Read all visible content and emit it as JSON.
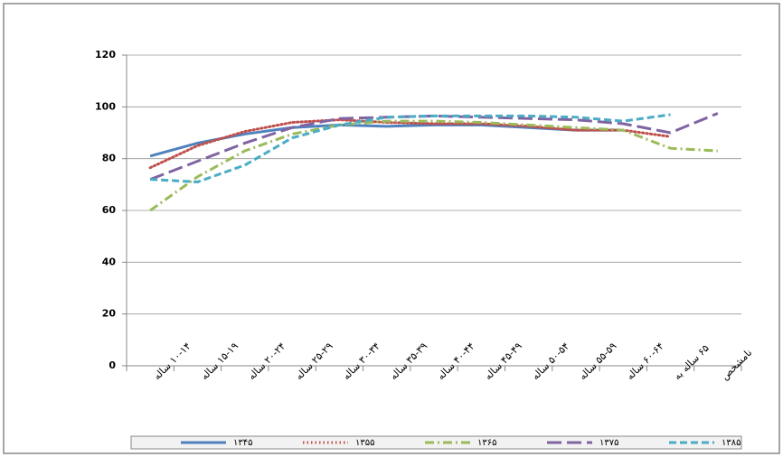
{
  "chart_data": {
    "type": "line",
    "categories": [
      "۱۰-۱۴ ساله",
      "۱۵-۱۹ ساله",
      "۲۰-۲۴ ساله",
      "۲۵-۲۹ ساله",
      "۳۰-۳۴ ساله",
      "۳۵-۳۹ ساله",
      "۴۰-۴۴ ساله",
      "۴۵-۴۹ ساله",
      "۵۰-۵۴ ساله",
      "۵۵-۵۹ ساله",
      "۶۰-۶۴ ساله",
      "۶۵ ساله به",
      "نامشخص"
    ],
    "series": [
      {
        "name": "۱۳۴۵",
        "color": "#4f81bd",
        "dash": "solid",
        "values": [
          81,
          86,
          89.5,
          92,
          93,
          92.5,
          93,
          93,
          92,
          91,
          91,
          null,
          null
        ]
      },
      {
        "name": "۱۳۵۵",
        "color": "#c0504d",
        "dash": "dotted",
        "values": [
          76.5,
          85,
          90.5,
          94,
          95,
          94,
          93.5,
          93.5,
          92.5,
          91,
          91,
          88.5,
          null
        ]
      },
      {
        "name": "۱۳۶۵",
        "color": "#9bbb59",
        "dash": "dashdot",
        "values": [
          60,
          73,
          83,
          89.5,
          93,
          94.5,
          94.5,
          94,
          93,
          92,
          91,
          84,
          83
        ]
      },
      {
        "name": "۱۳۷۵",
        "color": "#8064a2",
        "dash": "longdash",
        "values": [
          72,
          79,
          86,
          92,
          95.5,
          96,
          96.5,
          96,
          95.5,
          95,
          93.5,
          90,
          97.5
        ]
      },
      {
        "name": "۱۳۸۵",
        "color": "#4bacc6",
        "dash": "dashed",
        "values": [
          72,
          71,
          77.5,
          88,
          93,
          96,
          96.5,
          96.5,
          96.5,
          96,
          94.5,
          97,
          null
        ]
      }
    ],
    "ylim": [
      0,
      120
    ],
    "yticks": [
      0,
      20,
      40,
      60,
      80,
      100,
      120
    ],
    "grid": true,
    "legend": "bottom"
  }
}
